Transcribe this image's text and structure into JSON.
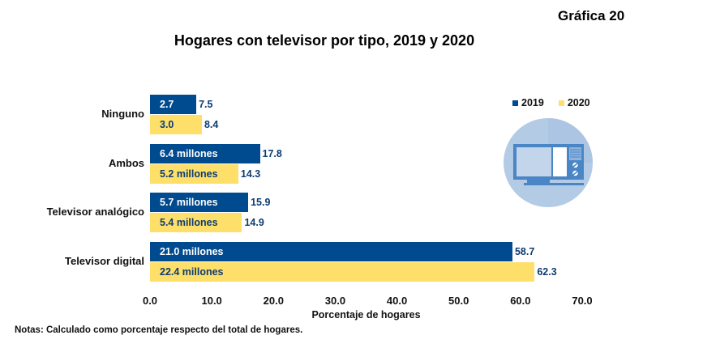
{
  "header": {
    "chart_number": "Gráfica 20",
    "title": "Hogares con televisor por tipo, 2019 y 2020"
  },
  "notes": "Notas: Calculado como porcentaje respecto del total de hogares.",
  "colors": {
    "series_2019": "#004a8f",
    "series_2020": "#fddf6a",
    "value_text": "#0d3c73",
    "icon_circle": "#b3cbe5",
    "icon_tv": "#4a86c5"
  },
  "icon": "television-icon",
  "chart_data": {
    "type": "bar",
    "orientation": "horizontal",
    "title": "Hogares con televisor por tipo, 2019 y 2020",
    "xlabel": "Porcentaje de hogares",
    "ylabel": "",
    "xlim": [
      0,
      70
    ],
    "x_ticks": [
      "0.0",
      "10.0",
      "20.0",
      "30.0",
      "40.0",
      "50.0",
      "60.0",
      "70.0"
    ],
    "grid": false,
    "legend_position": "top-right",
    "categories": [
      "Ninguno",
      "Ambos",
      "Televisor analógico",
      "Televisor digital"
    ],
    "series": [
      {
        "name": "2019",
        "values": [
          7.5,
          17.8,
          15.9,
          58.7
        ],
        "value_labels": [
          "7.5",
          "17.8",
          "15.9",
          "58.7"
        ],
        "inbar_labels": [
          "2.7",
          "6.4 millones",
          "5.7 millones",
          "21.0 millones"
        ]
      },
      {
        "name": "2020",
        "values": [
          8.4,
          14.3,
          14.9,
          62.3
        ],
        "value_labels": [
          "8.4",
          "14.3",
          "14.9",
          "62.3"
        ],
        "inbar_labels": [
          "3.0",
          "5.2 millones",
          "5.4 millones",
          "22.4 millones"
        ]
      }
    ]
  }
}
